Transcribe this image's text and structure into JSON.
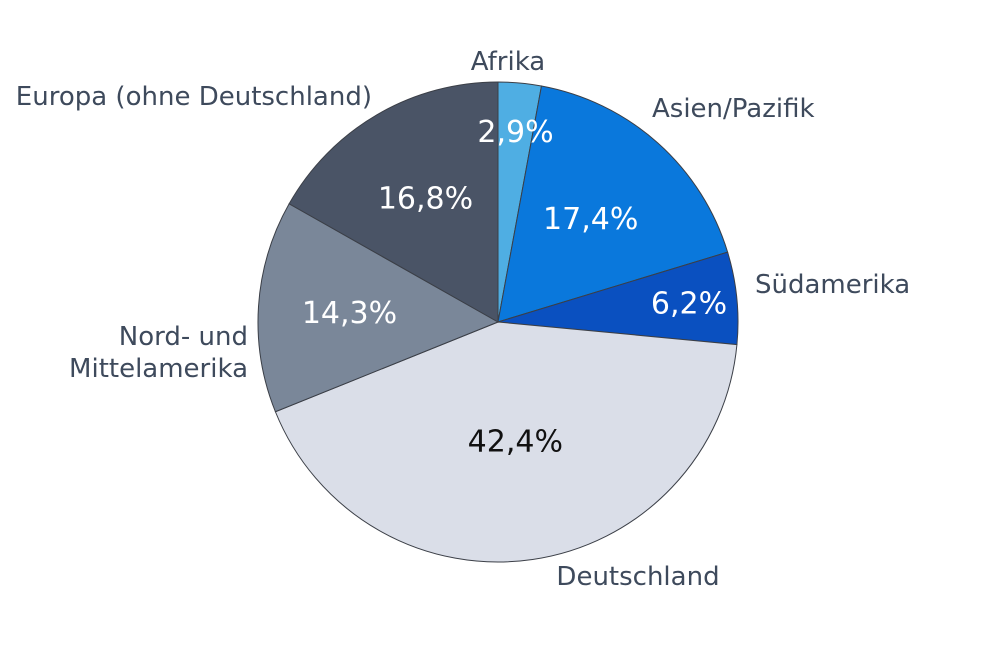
{
  "chart_data": {
    "type": "pie",
    "title": "",
    "start_angle_deg": 0,
    "direction": "clockwise",
    "slices": [
      {
        "name": "Afrika",
        "value": 2.9,
        "label": "2,9%",
        "color": "#4faee3",
        "label_color": "#ffffff"
      },
      {
        "name": "Asien/Pazifik",
        "value": 17.4,
        "label": "17,4%",
        "color": "#0a78dc",
        "label_color": "#ffffff"
      },
      {
        "name": "Südamerika",
        "value": 6.2,
        "label": "6,2%",
        "color": "#0a50c0",
        "label_color": "#ffffff"
      },
      {
        "name": "Deutschland",
        "value": 42.4,
        "label": "42,4%",
        "color": "#dadee8",
        "label_color": "#111111"
      },
      {
        "name": "Nord- und Mittelamerika",
        "name_lines": [
          "Nord- und",
          "Mittelamerika"
        ],
        "value": 14.3,
        "label": "14,3%",
        "color": "#7a8799",
        "label_color": "#ffffff"
      },
      {
        "name": "Europa (ohne Deutschland)",
        "value": 16.8,
        "label": "16,8%",
        "color": "#4a5466",
        "label_color": "#ffffff"
      }
    ]
  }
}
